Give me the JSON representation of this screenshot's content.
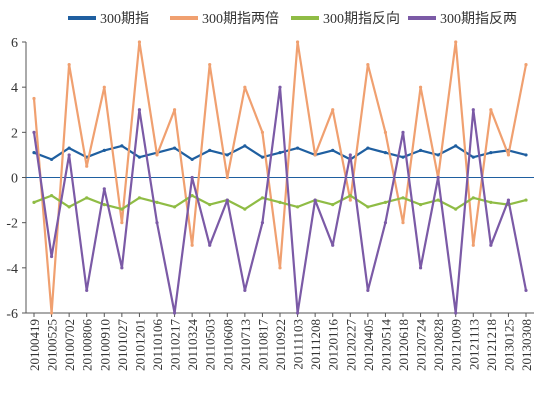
{
  "chart_data": {
    "type": "line",
    "title": "",
    "xlabel": "",
    "ylabel": "",
    "ylim": [
      -6,
      6
    ],
    "yticks": [
      -6,
      -4,
      -2,
      0,
      2,
      4,
      6
    ],
    "grid": false,
    "legend_position": "top",
    "x": [
      "20100419",
      "20100525",
      "20100702",
      "20100806",
      "20100910",
      "20101027",
      "20101201",
      "20110106",
      "20110217",
      "20110324",
      "20110503",
      "20110608",
      "20110713",
      "20110817",
      "20110922",
      "20111103",
      "20111208",
      "20120116",
      "20120227",
      "20120405",
      "20120514",
      "20120618",
      "20120724",
      "20120828",
      "20121009",
      "20121113",
      "20121218",
      "20130125",
      "20130308"
    ],
    "series": [
      {
        "name": "300期指",
        "color": "#1f5fa0",
        "values": [
          1.1,
          0.8,
          1.3,
          0.9,
          1.2,
          1.4,
          0.9,
          1.1,
          1.3,
          0.8,
          1.2,
          1.0,
          1.4,
          0.9,
          1.1,
          1.3,
          1.0,
          1.2,
          0.8,
          1.3,
          1.1,
          0.9,
          1.2,
          1.0,
          1.4,
          0.9,
          1.1,
          1.2,
          1.0
        ]
      },
      {
        "name": "300期指两倍",
        "color": "#f0a070",
        "values": [
          3.5,
          -6,
          5,
          0.5,
          4,
          -2,
          6,
          1,
          3,
          -3,
          5,
          0,
          4,
          2,
          -4,
          6,
          1,
          3,
          -1,
          5,
          2,
          -2,
          4,
          0,
          6,
          -3,
          3,
          1,
          5
        ]
      },
      {
        "name": "300期指反向",
        "color": "#8fbc45",
        "values": [
          -1.1,
          -0.8,
          -1.3,
          -0.9,
          -1.2,
          -1.4,
          -0.9,
          -1.1,
          -1.3,
          -0.8,
          -1.2,
          -1.0,
          -1.4,
          -0.9,
          -1.1,
          -1.3,
          -1.0,
          -1.2,
          -0.8,
          -1.3,
          -1.1,
          -0.9,
          -1.2,
          -1.0,
          -1.4,
          -0.9,
          -1.1,
          -1.2,
          -1.0
        ]
      },
      {
        "name": "300期指反两",
        "color": "#7b5aa6",
        "values": [
          2,
          -3.5,
          1,
          -5,
          -0.5,
          -4,
          3,
          -2,
          -6,
          0,
          -3,
          -1,
          -5,
          -2,
          4,
          -6,
          -1,
          -3,
          1,
          -5,
          -2,
          2,
          -4,
          0,
          -6,
          3,
          -3,
          -1,
          -5
        ]
      }
    ]
  }
}
